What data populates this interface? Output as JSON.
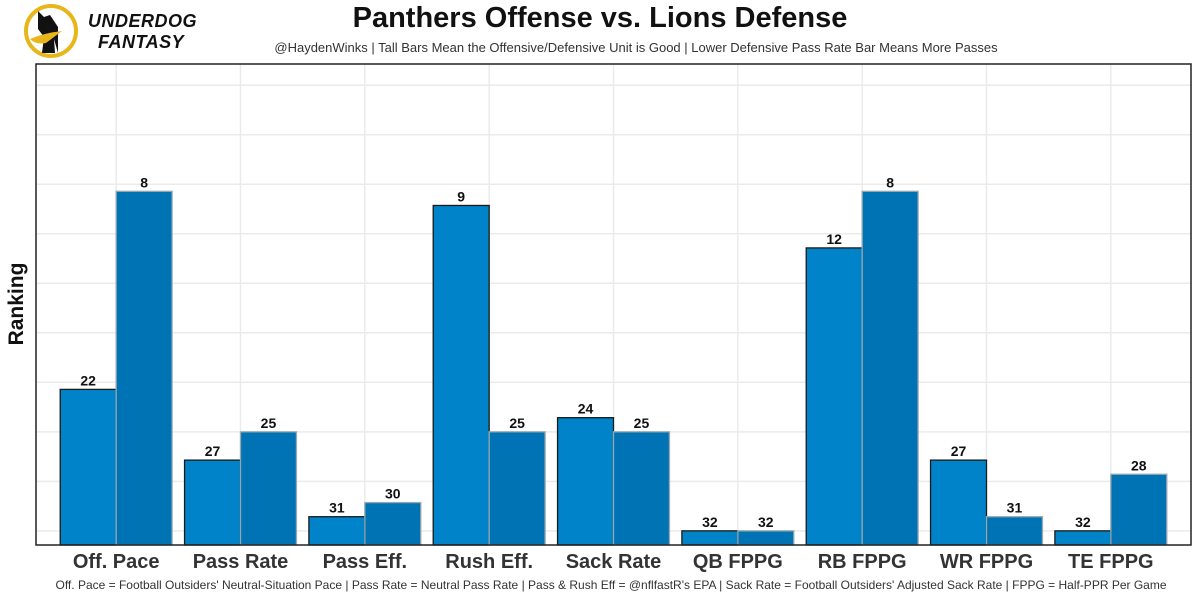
{
  "header": {
    "logo_line1": "UNDERDOG",
    "logo_line2": "FANTASY",
    "title": "Panthers Offense vs. Lions Defense",
    "subtitle": "@HaydenWinks | Tall Bars Mean the Offensive/Defensive Unit is Good | Lower Defensive Pass Rate Bar Means More Passes"
  },
  "footer": {
    "note": "Off. Pace = Football Outsiders' Neutral-Situation Pace | Pass Rate = Neutral Pass Rate | Pass & Rush Eff = @nflfastR's EPA | Sack Rate = Football Outsiders' Adjusted Sack Rate | FPPG = Half-PPR Per Game"
  },
  "colors": {
    "offense": "#0083C9",
    "defense": "#0073B4",
    "logo_gold": "#E8B51A"
  },
  "chart_data": {
    "type": "bar",
    "title": "Panthers Offense vs. Lions Defense",
    "xlabel": "",
    "ylabel": "Ranking",
    "categories": [
      "Off. Pace",
      "Pass Rate",
      "Pass Eff.",
      "Rush Eff.",
      "Sack Rate",
      "QB FPPG",
      "RB FPPG",
      "WR FPPG",
      "TE FPPG"
    ],
    "series": [
      {
        "name": "Panthers Offense",
        "values": [
          22,
          27,
          31,
          9,
          24,
          32,
          12,
          27,
          32
        ]
      },
      {
        "name": "Lions Defense",
        "values": [
          8,
          25,
          30,
          25,
          25,
          32,
          8,
          31,
          28
        ]
      }
    ],
    "bar_height_rule": "33 - rank (rank 1 = tallest)",
    "ylim": [
      0,
      34
    ],
    "grid": true,
    "legend": "none"
  }
}
